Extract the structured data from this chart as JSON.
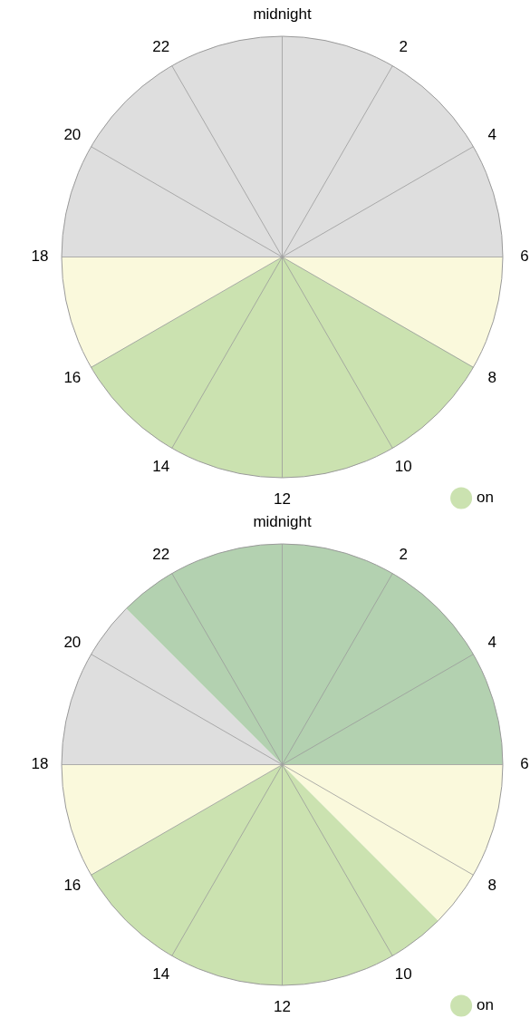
{
  "chart_data": [
    {
      "type": "pie",
      "categories": [
        null,
        null,
        "on",
        null,
        null
      ],
      "values": [
        25,
        8.3,
        33.4,
        8.3,
        25
      ],
      "colors": [
        "#dedede",
        "#faf9dc",
        "#cbe2b0",
        "#faf9dc",
        "#dedede"
      ],
      "annotations": [
        "midnight",
        "2",
        "4",
        "6",
        "8",
        "10",
        "12",
        "14",
        "16",
        "18",
        "20",
        "22"
      ],
      "legend": "bottom right"
    },
    {
      "type": "pie",
      "categories": [
        null,
        null,
        "on",
        null,
        null,
        null
      ],
      "values": [
        25,
        12.5,
        29.2,
        8.3,
        12.5,
        12.5
      ],
      "colors": [
        "#b3d1b0",
        "#faf9dc",
        "#cbe2b0",
        "#faf9dc",
        "#dedede",
        "#b3d1b0"
      ],
      "annotations": [
        "midnight",
        "2",
        "4",
        "6",
        "8",
        "10",
        "12",
        "14",
        "16",
        "18",
        "20",
        "22"
      ],
      "legend": "bottom right"
    }
  ]
}
